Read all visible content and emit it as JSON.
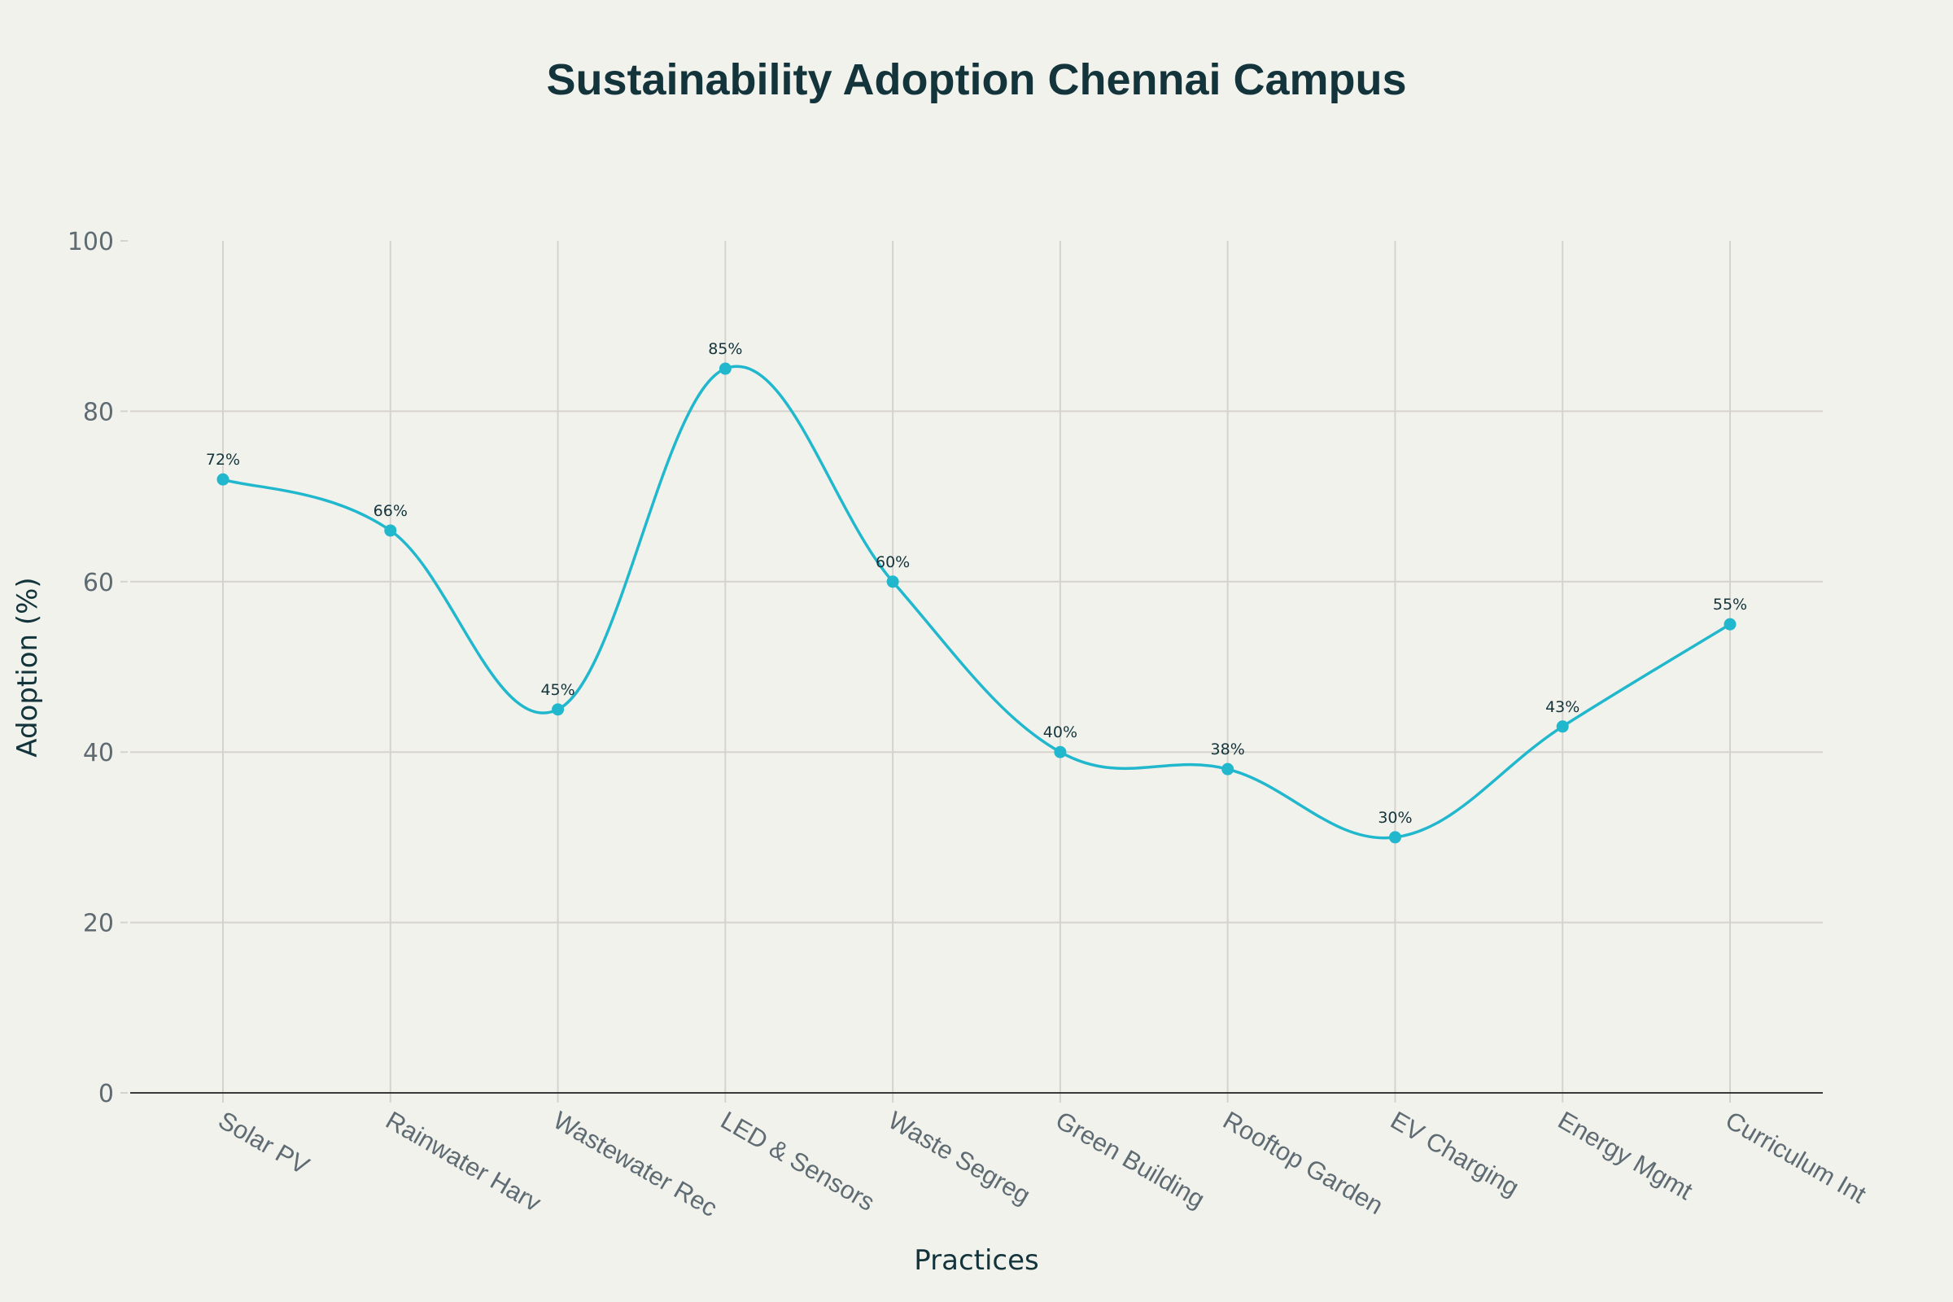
{
  "chart_data": {
    "type": "line",
    "title": "Sustainability Adoption Chennai Campus",
    "xlabel": "Practices",
    "ylabel": "Adoption (%)",
    "categories": [
      "Solar PV",
      "Rainwater Harv",
      "Wastewater Rec",
      "LED & Sensors",
      "Waste Segreg",
      "Green Building",
      "Rooftop Garden",
      "EV Charging",
      "Energy Mgmt",
      "Curriculum Int"
    ],
    "series": [
      {
        "name": "Adoption",
        "values": [
          72,
          66,
          45,
          85,
          60,
          40,
          38,
          30,
          43,
          55
        ],
        "labels": [
          "72%",
          "66%",
          "45%",
          "85%",
          "60%",
          "40%",
          "38%",
          "30%",
          "43%",
          "55%"
        ],
        "color": "#21b8cd",
        "line_shape": "spline",
        "markers": true
      }
    ],
    "ylim": [
      0,
      100
    ],
    "yticks": [
      0,
      20,
      40,
      60,
      80,
      100
    ],
    "ytick_labels": [
      "0",
      "20",
      "40",
      "60",
      "80",
      "100"
    ],
    "grid": true,
    "legend": "none"
  }
}
